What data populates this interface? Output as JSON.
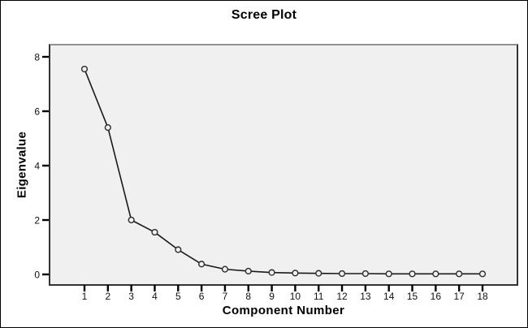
{
  "chart_data": {
    "type": "line",
    "title": "Scree Plot",
    "xlabel": "Component Number",
    "ylabel": "Eigenvalue",
    "x": [
      1,
      2,
      3,
      4,
      5,
      6,
      7,
      8,
      9,
      10,
      11,
      12,
      13,
      14,
      15,
      16,
      17,
      18
    ],
    "series": [
      {
        "name": "Eigenvalue",
        "values": [
          7.55,
          5.4,
          2.0,
          1.55,
          0.91,
          0.38,
          0.19,
          0.12,
          0.07,
          0.05,
          0.04,
          0.03,
          0.03,
          0.02,
          0.02,
          0.02,
          0.02,
          0.02
        ]
      }
    ],
    "x_tick_labels": [
      "1",
      "2",
      "3",
      "4",
      "5",
      "6",
      "7",
      "8",
      "9",
      "10",
      "11",
      "12",
      "13",
      "14",
      "15",
      "16",
      "17",
      "18"
    ],
    "y_tick_values": [
      0,
      2,
      4,
      6,
      8
    ],
    "y_tick_labels": [
      "0",
      "2",
      "4",
      "6",
      "8"
    ],
    "xlim": [
      -0.5,
      19.5
    ],
    "ylim": [
      -0.42,
      8.48
    ],
    "grid": false,
    "legend": null,
    "marker": "open-circle",
    "colors": {
      "line": "#1a1a1a",
      "marker_stroke": "#2b2b2b",
      "marker_fill": "#f0f0f0",
      "plot_bg": "#f0f0f0",
      "canvas_bg": "#ffffff",
      "frame": "#000000",
      "text": "#000000"
    }
  }
}
